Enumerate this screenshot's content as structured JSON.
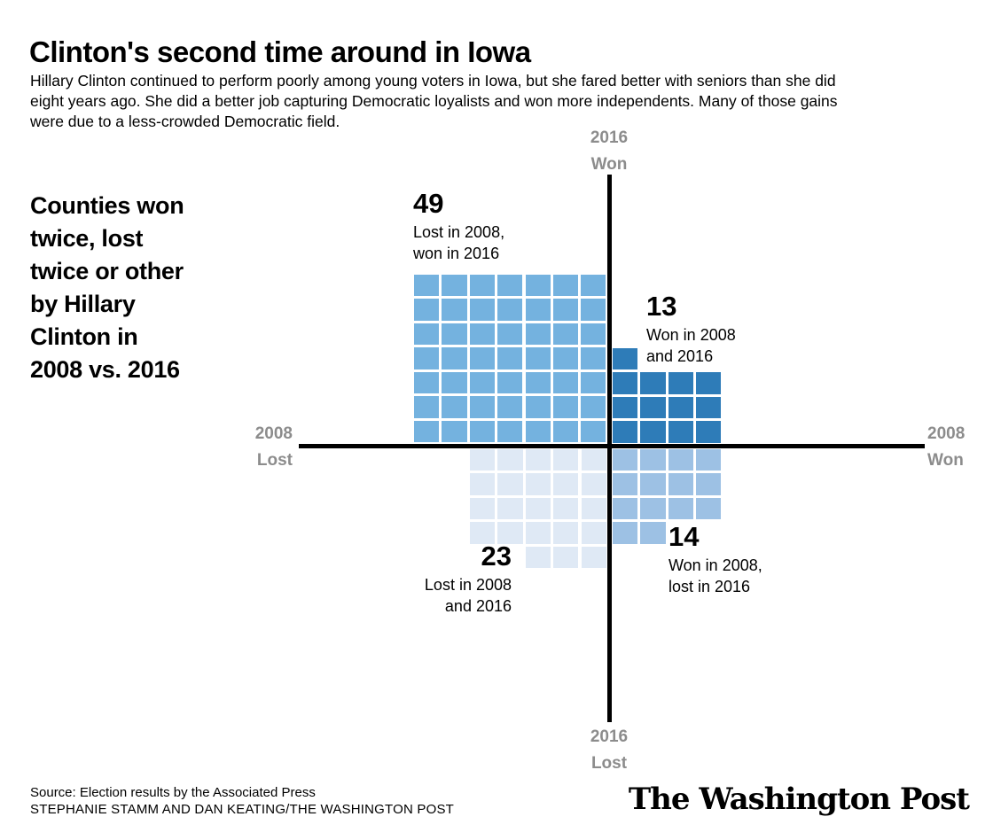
{
  "page": {
    "title": "Clinton's second time around in Iowa",
    "subtitle": "Hillary Clinton continued to perform poorly among young voters in Iowa, but she fared better with seniors than she did eight years ago. She did a better job capturing Democratic loyalists and won more independents. Many of those gains were due to a less-crowded Democratic field."
  },
  "chart_data": {
    "type": "waffle-quadrant",
    "title": "Counties won twice, lost twice or other by Hillary Clinton in 2008 vs. 2016",
    "side_label": "Counties won\ntwice, lost\ntwice or other\nby Hillary\nClinton in\n2008 vs. 2016",
    "unit": "counties",
    "axis_labels": {
      "top": "2016\nWon",
      "bottom": "2016\nLost",
      "left": "2008\nLost",
      "right": "2008\nWon"
    },
    "quadrants": [
      {
        "id": "lost-2008-won-2016",
        "position": "top-left",
        "count": 49,
        "label": "Lost in 2008,\nwon in 2016",
        "color": "#74b2df",
        "grid": [
          [
            1,
            1,
            1,
            1,
            1,
            1,
            1
          ],
          [
            1,
            1,
            1,
            1,
            1,
            1,
            1
          ],
          [
            1,
            1,
            1,
            1,
            1,
            1,
            1
          ],
          [
            1,
            1,
            1,
            1,
            1,
            1,
            1
          ],
          [
            1,
            1,
            1,
            1,
            1,
            1,
            1
          ],
          [
            1,
            1,
            1,
            1,
            1,
            1,
            1
          ],
          [
            1,
            1,
            1,
            1,
            1,
            1,
            1
          ]
        ]
      },
      {
        "id": "won-2008-and-2016",
        "position": "top-right",
        "count": 13,
        "label": "Won in 2008\nand 2016",
        "color": "#2e7cb8",
        "grid": [
          [
            1,
            0,
            0,
            0
          ],
          [
            1,
            1,
            1,
            1
          ],
          [
            1,
            1,
            1,
            1
          ],
          [
            1,
            1,
            1,
            1
          ]
        ]
      },
      {
        "id": "lost-2008-and-2016",
        "position": "bottom-left",
        "count": 23,
        "label": "Lost in 2008\nand 2016",
        "color": "#dfe9f5",
        "grid": [
          [
            1,
            1,
            1,
            1,
            1
          ],
          [
            1,
            1,
            1,
            1,
            1
          ],
          [
            1,
            1,
            1,
            1,
            1
          ],
          [
            1,
            1,
            1,
            1,
            1
          ],
          [
            0,
            0,
            1,
            1,
            1
          ]
        ]
      },
      {
        "id": "won-2008-lost-2016",
        "position": "bottom-right",
        "count": 14,
        "label": "Won in 2008,\nlost in 2016",
        "color": "#9dc1e4",
        "grid": [
          [
            1,
            1,
            1,
            1
          ],
          [
            1,
            1,
            1,
            1
          ],
          [
            1,
            1,
            1,
            1
          ],
          [
            1,
            1,
            0,
            0
          ]
        ]
      }
    ],
    "colors": {
      "axis": "#000000",
      "axis_label_gray": "#8c8c8c",
      "background": "#ffffff"
    }
  },
  "footer": {
    "source": "Source: Election results by the Associated Press",
    "credit": "STEPHANIE STAMM AND DAN KEATING/THE WASHINGTON POST",
    "logo": "The Washington Post"
  }
}
